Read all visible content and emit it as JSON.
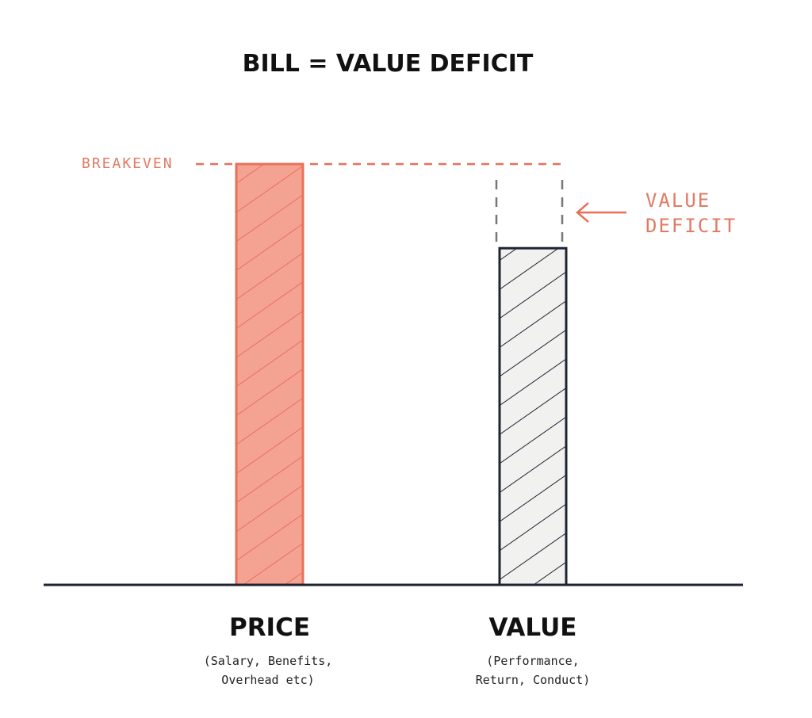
{
  "chart_data": {
    "type": "bar",
    "title": "BILL = VALUE DEFICIT",
    "categories": [
      "PRICE",
      "VALUE"
    ],
    "category_notes": [
      [
        "(Salary, Benefits,",
        "Overhead etc)"
      ],
      [
        "(Performance,",
        "Return, Conduct)"
      ]
    ],
    "values": [
      100,
      80
    ],
    "colors": [
      "#f4a393",
      "#f1f1f0"
    ],
    "edge_colors": [
      "#e8705a",
      "#1f2433"
    ],
    "ylim": [
      0,
      100
    ],
    "annotations": {
      "breakeven": "BREAKEVEN",
      "deficit": [
        "VALUE",
        "DEFICIT"
      ]
    }
  }
}
